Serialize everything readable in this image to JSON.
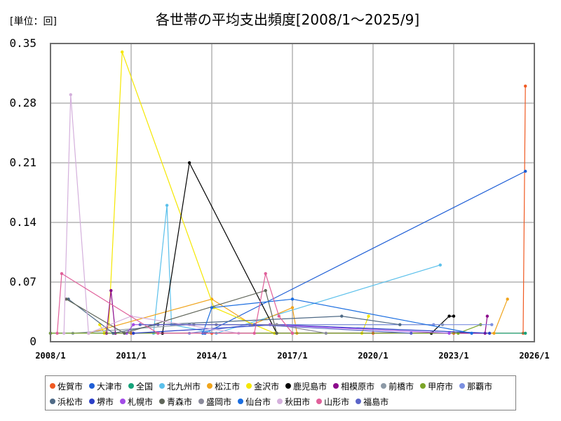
{
  "header": {
    "unit_label": "[単位：回]",
    "title": "各世帯の平均支出頻度[2008/1～2025/9]"
  },
  "axes": {
    "y_ticks": [
      "0.35",
      "0.28",
      "0.21",
      "0.14",
      "0.07",
      "0"
    ],
    "x_ticks": [
      "2008/1",
      "2011/1",
      "2014/1",
      "2017/1",
      "2020/1",
      "2023/1",
      "2026/1"
    ]
  },
  "legend": [
    {
      "name": "佐賀市",
      "color": "#f05a22"
    },
    {
      "name": "大津市",
      "color": "#1f5fd6"
    },
    {
      "name": "全国",
      "color": "#16a37a"
    },
    {
      "name": "北九州市",
      "color": "#5bc0eb"
    },
    {
      "name": "松江市",
      "color": "#f0a41c"
    },
    {
      "name": "金沢市",
      "color": "#f5e700"
    },
    {
      "name": "鹿児島市",
      "color": "#000000"
    },
    {
      "name": "相模原市",
      "color": "#8b0a8b"
    },
    {
      "name": "前橋市",
      "color": "#8c99a6"
    },
    {
      "name": "甲府市",
      "color": "#7ba428"
    },
    {
      "name": "那覇市",
      "color": "#7b8fe0"
    },
    {
      "name": "浜松市",
      "color": "#4f6a86"
    },
    {
      "name": "堺市",
      "color": "#2b3fc7"
    },
    {
      "name": "札幌市",
      "color": "#a24be6"
    },
    {
      "name": "青森市",
      "color": "#5f6559"
    },
    {
      "name": "盛岡市",
      "color": "#8a8a9a"
    },
    {
      "name": "仙台市",
      "color": "#1a6de0"
    },
    {
      "name": "秋田市",
      "color": "#d4b0dc"
    },
    {
      "name": "山形市",
      "color": "#e0609a"
    },
    {
      "name": "福島市",
      "color": "#5a64c8"
    }
  ],
  "chart_data": {
    "type": "line",
    "title": "各世帯の平均支出頻度[2008/1～2025/9]",
    "xlabel": "",
    "ylabel": "[単位：回]",
    "xlim": [
      "2008/1",
      "2026/1"
    ],
    "ylim": [
      0,
      0.35
    ],
    "y_ticks": [
      0,
      0.07,
      0.14,
      0.21,
      0.28,
      0.35
    ],
    "x_ticks": [
      "2008/1",
      "2011/1",
      "2014/1",
      "2017/1",
      "2020/1",
      "2023/1",
      "2026/1"
    ],
    "grid": true,
    "legend_position": "bottom",
    "series": [
      {
        "name": "佐賀市",
        "color": "#f05a22",
        "points": [
          [
            "2008/1",
            0.01
          ],
          [
            "2011/1",
            0.01
          ],
          [
            "2014/1",
            0.01
          ],
          [
            "2017/1",
            0.01
          ],
          [
            "2020/1",
            0.01
          ],
          [
            "2023/1",
            0.01
          ],
          [
            "2025/8",
            0.01
          ],
          [
            "2025/9",
            0.3
          ]
        ]
      },
      {
        "name": "大津市",
        "color": "#1f5fd6",
        "points": [
          [
            "2008/1",
            0.01
          ],
          [
            "2013/10",
            0.01
          ],
          [
            "2025/9",
            0.2
          ]
        ]
      },
      {
        "name": "全国",
        "color": "#16a37a",
        "points": [
          [
            "2008/1",
            0.01
          ],
          [
            "2025/9",
            0.01
          ]
        ]
      },
      {
        "name": "北九州市",
        "color": "#5bc0eb",
        "points": [
          [
            "2011/11",
            0.01
          ],
          [
            "2012/5",
            0.16
          ],
          [
            "2012/7",
            0.02
          ],
          [
            "2014/3",
            0.01
          ],
          [
            "2022/7",
            0.09
          ]
        ]
      },
      {
        "name": "松江市",
        "color": "#f0a41c",
        "points": [
          [
            "2009/6",
            0.01
          ],
          [
            "2014/1",
            0.05
          ],
          [
            "2015/7",
            0.02
          ],
          [
            "2017/1",
            0.04
          ],
          [
            "2017/3",
            0.01
          ],
          [
            "2024/7",
            0.01
          ],
          [
            "2025/1",
            0.05
          ]
        ]
      },
      {
        "name": "金沢市",
        "color": "#f5e700",
        "points": [
          [
            "2009/11",
            0.02
          ],
          [
            "2010/1",
            0.01
          ],
          [
            "2010/3",
            0.02
          ],
          [
            "2010/9",
            0.34
          ],
          [
            "2014/2",
            0.04
          ],
          [
            "2016/5",
            0.01
          ],
          [
            "2019/8",
            0.01
          ],
          [
            "2019/11",
            0.03
          ]
        ]
      },
      {
        "name": "鹿児島市",
        "color": "#000000",
        "points": [
          [
            "2012/3",
            0.01
          ],
          [
            "2013/3",
            0.21
          ],
          [
            "2016/6",
            0.01
          ],
          [
            "2022/3",
            0.01
          ],
          [
            "2022/11",
            0.03
          ],
          [
            "2023/1",
            0.03
          ]
        ]
      },
      {
        "name": "相模原市",
        "color": "#8b0a8b",
        "points": [
          [
            "2010/2",
            0.01
          ],
          [
            "2010/4",
            0.06
          ],
          [
            "2010/6",
            0.01
          ],
          [
            "2024/3",
            0.01
          ],
          [
            "2024/4",
            0.03
          ]
        ]
      },
      {
        "name": "前橋市",
        "color": "#8c99a6",
        "points": [
          [
            "2008/11",
            0.01
          ],
          [
            "2013/3",
            0.02
          ],
          [
            "2022/8",
            0.02
          ]
        ]
      },
      {
        "name": "甲府市",
        "color": "#7ba428",
        "points": [
          [
            "2008/1",
            0.01
          ],
          [
            "2023/3",
            0.01
          ],
          [
            "2024/1",
            0.02
          ]
        ]
      },
      {
        "name": "那覇市",
        "color": "#7b8fe0",
        "points": [
          [
            "2013/3",
            0.01
          ],
          [
            "2015/6",
            0.02
          ],
          [
            "2022/4",
            0.02
          ],
          [
            "2024/6",
            0.02
          ]
        ]
      },
      {
        "name": "浜松市",
        "color": "#4f6a86",
        "points": [
          [
            "2008/9",
            0.05
          ],
          [
            "2010/5",
            0.01
          ],
          [
            "2012/1",
            0.02
          ],
          [
            "2018/11",
            0.03
          ],
          [
            "2021/1",
            0.02
          ]
        ]
      },
      {
        "name": "堺市",
        "color": "#2b3fc7",
        "points": [
          [
            "2011/2",
            0.01
          ],
          [
            "2016/6",
            0.02
          ],
          [
            "2024/5",
            0.01
          ]
        ]
      },
      {
        "name": "札幌市",
        "color": "#a24be6",
        "points": [
          [
            "2010/11",
            0.01
          ],
          [
            "2011/2",
            0.02
          ],
          [
            "2016/3",
            0.02
          ],
          [
            "2022/11",
            0.01
          ]
        ]
      },
      {
        "name": "青森市",
        "color": "#5f6559",
        "points": [
          [
            "2008/8",
            0.05
          ],
          [
            "2010/10",
            0.01
          ],
          [
            "2016/1",
            0.06
          ],
          [
            "2016/6",
            0.01
          ]
        ]
      },
      {
        "name": "盛岡市",
        "color": "#8a8a9a",
        "points": [
          [
            "2013/5",
            0.02
          ],
          [
            "2014/3",
            0.02
          ],
          [
            "2016/6",
            0.02
          ],
          [
            "2018/4",
            0.01
          ]
        ]
      },
      {
        "name": "仙台市",
        "color": "#1a6de0",
        "points": [
          [
            "2013/9",
            0.01
          ],
          [
            "2014/1",
            0.04
          ],
          [
            "2017/1",
            0.05
          ],
          [
            "2023/9",
            0.01
          ]
        ]
      },
      {
        "name": "秋田市",
        "color": "#d4b0dc",
        "points": [
          [
            "2008/7",
            0.01
          ],
          [
            "2008/10",
            0.29
          ],
          [
            "2009/6",
            0.01
          ],
          [
            "2011/1",
            0.03
          ],
          [
            "2015/1",
            0.01
          ]
        ]
      },
      {
        "name": "山形市",
        "color": "#e0609a",
        "points": [
          [
            "2008/4",
            0.01
          ],
          [
            "2008/6",
            0.08
          ],
          [
            "2012/1",
            0.01
          ],
          [
            "2015/8",
            0.01
          ],
          [
            "2016/1",
            0.08
          ],
          [
            "2016/7",
            0.03
          ],
          [
            "2017/1",
            0.01
          ]
        ]
      },
      {
        "name": "福島市",
        "color": "#5a64c8",
        "points": [
          [
            "2011/5",
            0.02
          ],
          [
            "2015/8",
            0.02
          ],
          [
            "2021/6",
            0.01
          ]
        ]
      }
    ]
  }
}
